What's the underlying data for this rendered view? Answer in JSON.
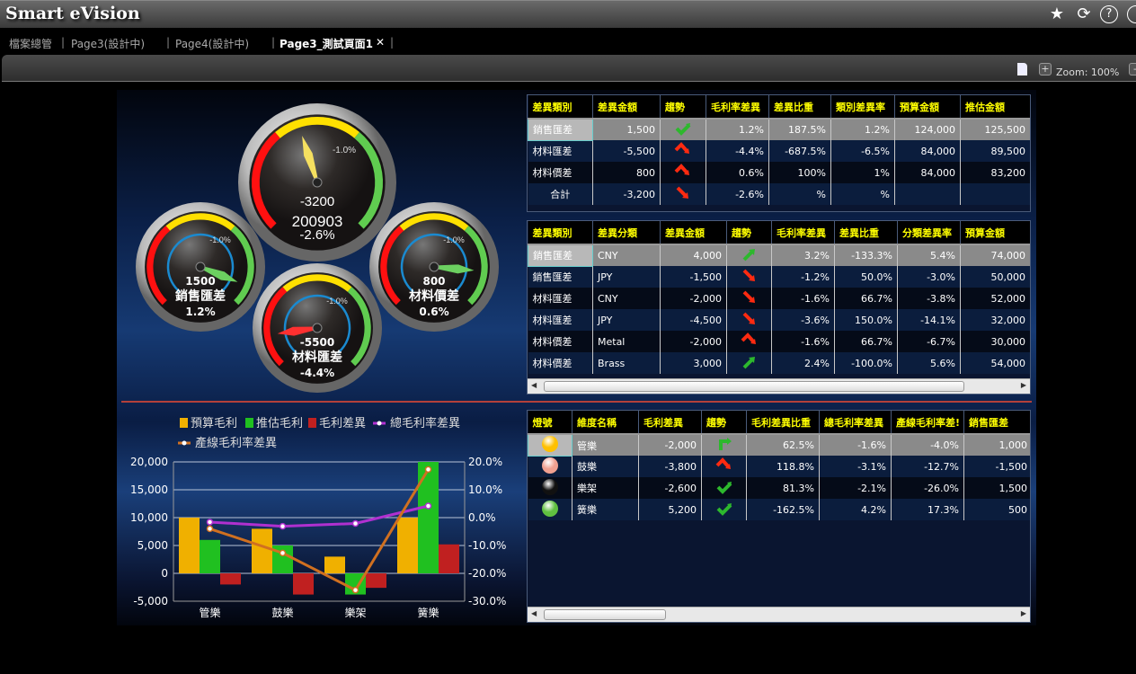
{
  "app": {
    "title": "Smart eVision",
    "icons": [
      "star-icon",
      "refresh-icon",
      "help-icon"
    ]
  },
  "tabs": [
    {
      "label": "檔案總管"
    },
    {
      "label": "Page3(設計中)"
    },
    {
      "label": "Page4(設計中)"
    },
    {
      "label": "Page3_測試頁面1",
      "active": true
    }
  ],
  "toolbar": {
    "zoom_label": "Zoom: 100%",
    "plus": "+",
    "minus": "-"
  },
  "gauges": [
    {
      "value": "-3200",
      "label": "200903",
      "pct": "-2.6%",
      "target": "-1.0%",
      "needle_color": "#f5e060"
    },
    {
      "value": "1500",
      "label": "銷售匯差",
      "pct": "1.2%",
      "target": "-1.0%",
      "needle_color": "#6cd060"
    },
    {
      "value": "800",
      "label": "材料價差",
      "pct": "0.6%",
      "target": "-1.0%",
      "needle_color": "#6cd060"
    },
    {
      "value": "-5500",
      "label": "材料匯差",
      "pct": "-4.4%",
      "target": "-1.0%",
      "needle_color": "#ff3030"
    }
  ],
  "table1": {
    "headers": [
      "差異類別",
      "差異金額",
      "趨勢",
      "毛利率差異",
      "差異比重",
      "類別差異率",
      "預算金額",
      "推估金額"
    ],
    "rows": [
      [
        "銷售匯差",
        "1,500",
        "check-up",
        "1.2%",
        "187.5%",
        "1.2%",
        "124,000",
        "125,500"
      ],
      [
        "材料匯差",
        "-5,500",
        "peak-down",
        "-4.4%",
        "-687.5%",
        "-6.5%",
        "84,000",
        "89,500"
      ],
      [
        "材料價差",
        "800",
        "peak-down",
        "0.6%",
        "100%",
        "1%",
        "84,000",
        "83,200"
      ],
      [
        "合計",
        "-3,200",
        "down",
        "-2.6%",
        "%",
        "%",
        "",
        ""
      ]
    ]
  },
  "table2": {
    "headers": [
      "差異類別",
      "差異分類",
      "差異金額",
      "趨勢",
      "毛利率差異",
      "差異比重",
      "分類差異率",
      "預算金額"
    ],
    "rows": [
      [
        "銷售匯差",
        "CNY",
        "4,000",
        "up",
        "3.2%",
        "-133.3%",
        "5.4%",
        "74,000"
      ],
      [
        "銷售匯差",
        "JPY",
        "-1,500",
        "down",
        "-1.2%",
        "50.0%",
        "-3.0%",
        "50,000"
      ],
      [
        "材料匯差",
        "CNY",
        "-2,000",
        "down",
        "-1.6%",
        "66.7%",
        "-3.8%",
        "52,000"
      ],
      [
        "材料匯差",
        "JPY",
        "-4,500",
        "down",
        "-3.6%",
        "150.0%",
        "-14.1%",
        "32,000"
      ],
      [
        "材料價差",
        "Metal",
        "-2,000",
        "peak-down",
        "-1.6%",
        "66.7%",
        "-6.7%",
        "30,000"
      ],
      [
        "材料價差",
        "Brass",
        "3,000",
        "up",
        "2.4%",
        "-100.0%",
        "5.6%",
        "54,000"
      ]
    ]
  },
  "table3": {
    "headers": [
      "燈號",
      "維度名稱",
      "毛利差異",
      "趨勢",
      "毛利差異比重",
      "總毛利率差異",
      "產線毛利率差!",
      "銷售匯差"
    ],
    "rows": [
      [
        "#ffc000",
        "管樂",
        "-2,000",
        "turn-right",
        "62.5%",
        "-1.6%",
        "-4.0%",
        "1,000"
      ],
      [
        "#f0a090",
        "鼓樂",
        "-3,800",
        "peak-down",
        "118.8%",
        "-3.1%",
        "-12.7%",
        "-1,500"
      ],
      [
        "#111111",
        "樂架",
        "-2,600",
        "check-up",
        "81.3%",
        "-2.1%",
        "-26.0%",
        "1,500"
      ],
      [
        "#60c040",
        "簧樂",
        "5,200",
        "check-up",
        "-162.5%",
        "4.2%",
        "17.3%",
        "500"
      ]
    ]
  },
  "colors": {
    "header_text": "#ffff00",
    "up": "#2db82d",
    "down": "#ff2a10",
    "divider": "#b3403a"
  },
  "chart_data": {
    "type": "bar+line",
    "categories": [
      "管樂",
      "鼓樂",
      "樂架",
      "簧樂"
    ],
    "series": [
      {
        "name": "預算毛利",
        "type": "bar",
        "axis": "left",
        "color": "#f0b000",
        "values": [
          10000,
          8000,
          3000,
          10000
        ]
      },
      {
        "name": "推估毛利",
        "type": "bar",
        "axis": "left",
        "color": "#20c020",
        "values": [
          6000,
          5000,
          -3800,
          20000
        ]
      },
      {
        "name": "毛利差異",
        "type": "bar",
        "axis": "left",
        "color": "#c02020",
        "values": [
          -2000,
          -3800,
          -2600,
          5200
        ]
      },
      {
        "name": "總毛利率差異",
        "type": "line",
        "axis": "right",
        "color": "#b030d0",
        "values": [
          -1.6,
          -3.1,
          -2.1,
          4.2
        ]
      },
      {
        "name": "產線毛利率差異",
        "type": "line",
        "axis": "right",
        "color": "#d07020",
        "values": [
          -4.0,
          -12.7,
          -26.0,
          17.3
        ]
      }
    ],
    "ylim": [
      -5000,
      20000
    ],
    "yticks": [
      "20,000",
      "15,000",
      "10,000",
      "5,000",
      "0",
      "-5,000"
    ],
    "y2lim": [
      -30,
      20
    ],
    "y2ticks": [
      "20.0%",
      "10.0%",
      "0.0%",
      "-10.0%",
      "-20.0%",
      "-30.0%"
    ],
    "grid": true,
    "legend": "top"
  }
}
